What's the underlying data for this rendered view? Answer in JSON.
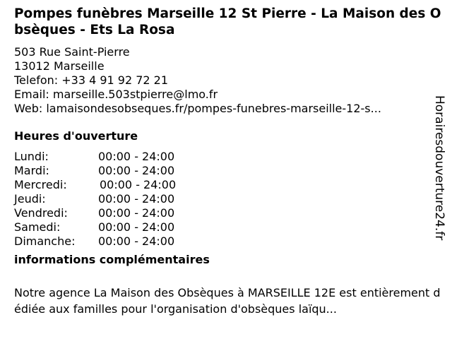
{
  "business": {
    "title": "Pompes funèbres Marseille 12 St Pierre - La Maison des Obsèques - Ets La Rosa",
    "address_line1": "503 Rue Saint-Pierre",
    "address_line2": "13012 Marseille",
    "phone": "Telefon: +33 4 91 92 72 21",
    "email": "Email: marseille.503stpierre@lmo.fr",
    "web": "Web: lamaisondesobseques.fr/pompes-funebres-marseille-12-s..."
  },
  "hours": {
    "heading": "Heures d'ouverture",
    "days": [
      {
        "day": "Lundi:",
        "time": "00:00 - 24:00"
      },
      {
        "day": "Mardi:",
        "time": "00:00 - 24:00"
      },
      {
        "day": "Mercredi:",
        "time": "00:00 - 24:00"
      },
      {
        "day": "Jeudi:",
        "time": "00:00 - 24:00"
      },
      {
        "day": "Vendredi:",
        "time": "00:00 - 24:00"
      },
      {
        "day": "Samedi:",
        "time": "00:00 - 24:00"
      },
      {
        "day": "Dimanche:",
        "time": "00:00 - 24:00"
      }
    ]
  },
  "info": {
    "heading": "informations complémentaires",
    "description": "Notre agence La Maison des Obsèques à MARSEILLE 12E est entièrement dédiée aux familles pour l'organisation d'obsèques laïqu..."
  },
  "watermark": "Horairesdouverture24.fr"
}
